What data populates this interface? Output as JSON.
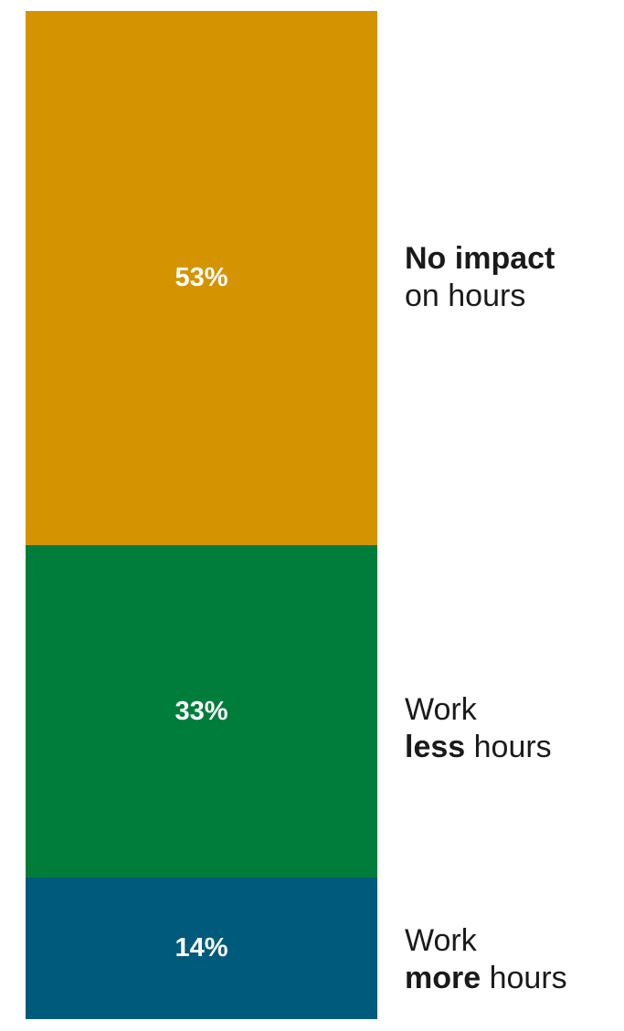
{
  "chart_data": {
    "type": "bar",
    "stacked": true,
    "orientation": "vertical",
    "unit": "%",
    "segments": [
      {
        "value": 14,
        "value_label": "14%",
        "color": "#005a7c",
        "label_line1": [
          "Work"
        ],
        "label_line2": [
          {
            "text": "more",
            "bold": true
          },
          {
            "text": " hours",
            "bold": false
          }
        ]
      },
      {
        "value": 33,
        "value_label": "33%",
        "color": "#007d3a",
        "label_line1": [
          "Work"
        ],
        "label_line2": [
          {
            "text": "less",
            "bold": true
          },
          {
            "text": " hours",
            "bold": false
          }
        ]
      },
      {
        "value": 53,
        "value_label": "53%",
        "color": "#d49300",
        "label_line1": [
          {
            "text": "No impact",
            "bold": true
          }
        ],
        "label_line2": [
          {
            "text": "on hours",
            "bold": false
          }
        ]
      }
    ],
    "total": 100,
    "legend": "right"
  }
}
